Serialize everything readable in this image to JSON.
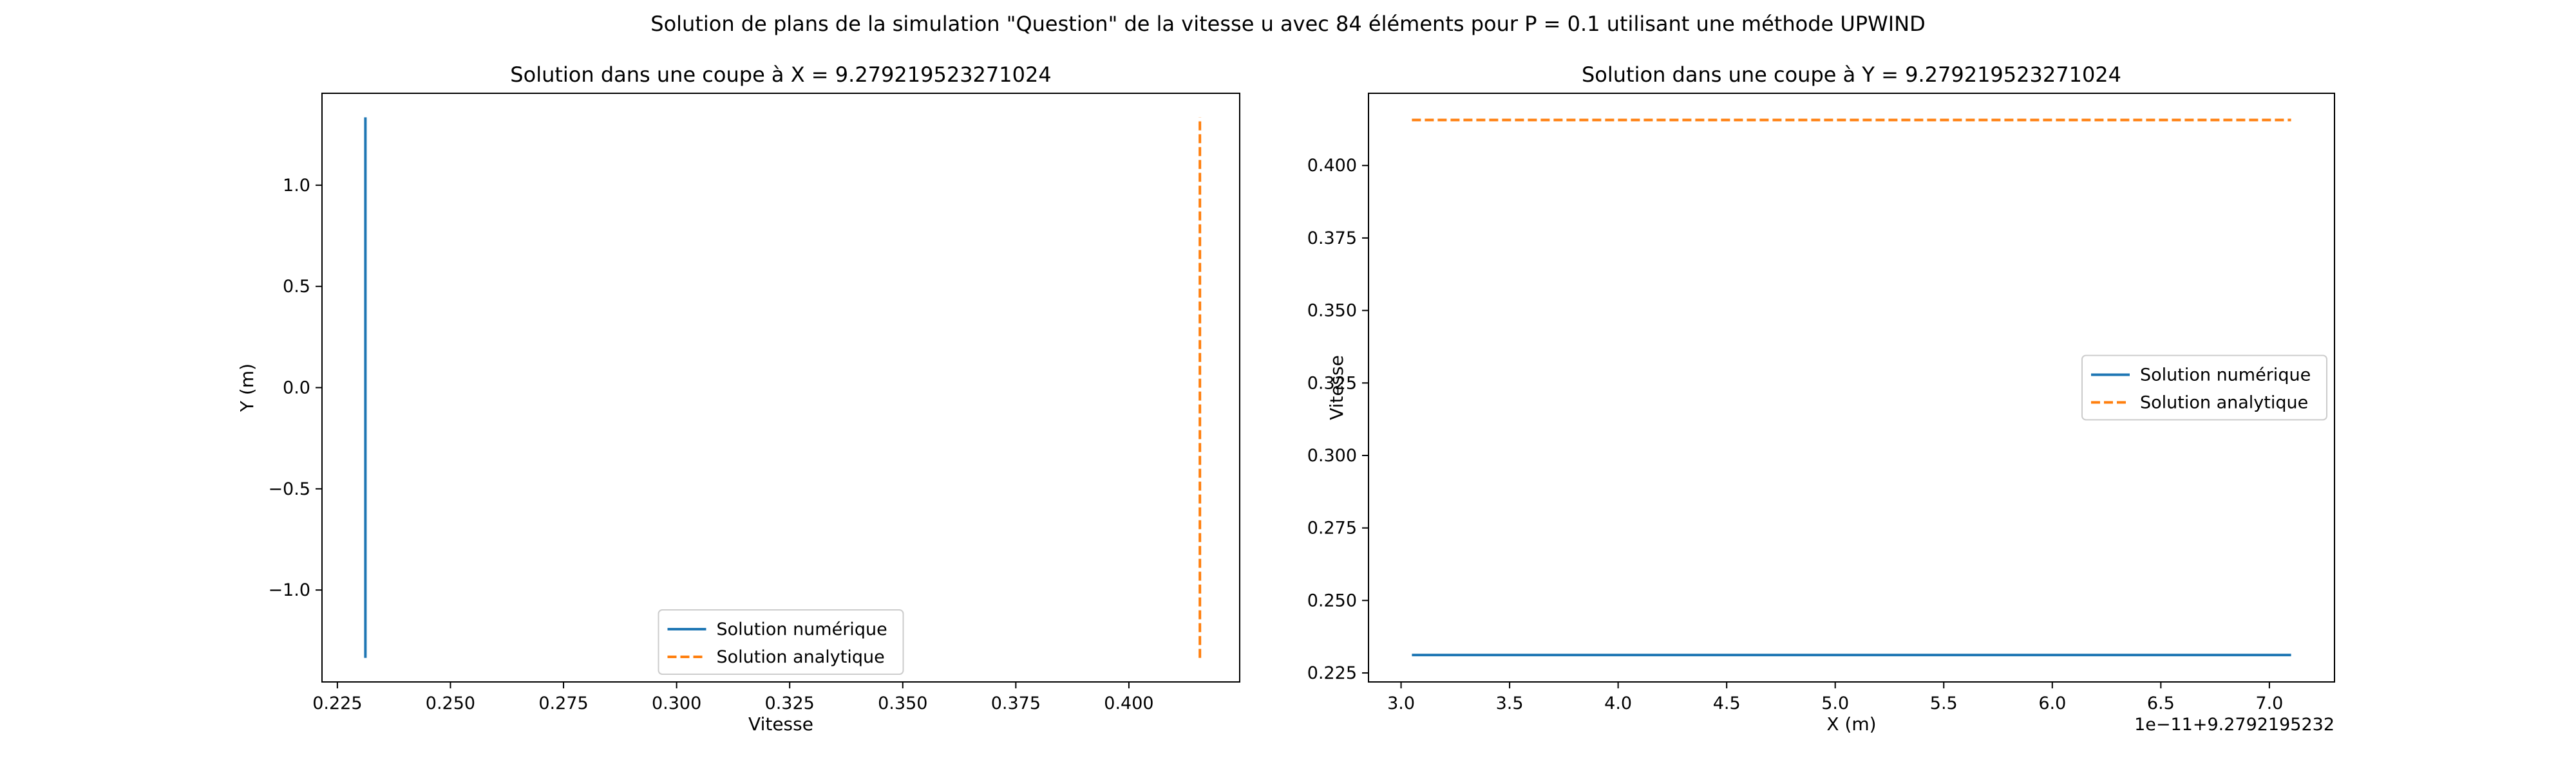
{
  "figure": {
    "suptitle": "Solution de plans de la simulation \"Question\" de la vitesse u avec 84 éléments pour P = 0.1 utilisant une méthode UPWIND"
  },
  "colors": {
    "numeric": "#1f77b4",
    "analytic": "#ff7f0e",
    "axes": "#000000",
    "background": "#ffffff"
  },
  "chart_data": [
    {
      "type": "line",
      "title": "Solution dans une coupe à X = 9.279219523271024",
      "xlabel": "Vitesse",
      "ylabel": "Y (m)",
      "xlim": [
        0.2216,
        0.4245
      ],
      "ylim": [
        -1.454,
        1.454
      ],
      "xticks": [
        0.225,
        0.25,
        0.275,
        0.3,
        0.325,
        0.35,
        0.375,
        0.4
      ],
      "xtick_labels": [
        "0.225",
        "0.250",
        "0.275",
        "0.300",
        "0.325",
        "0.350",
        "0.375",
        "0.400"
      ],
      "yticks": [
        -1.0,
        -0.5,
        0.0,
        0.5,
        1.0
      ],
      "ytick_labels": [
        "−1.0",
        "−0.5",
        "0.0",
        "0.5",
        "1.0"
      ],
      "grid": false,
      "legend_position": "lower center",
      "series": [
        {
          "name": "Solution numérique",
          "style": "solid",
          "color": "#1f77b4",
          "x": [
            0.2312,
            0.2312
          ],
          "y": [
            -1.335,
            1.335
          ]
        },
        {
          "name": "Solution analytique",
          "style": "dashed",
          "color": "#ff7f0e",
          "x": [
            0.4157,
            0.4157
          ],
          "y": [
            -1.335,
            1.335
          ]
        }
      ]
    },
    {
      "type": "line",
      "title": "Solution dans une coupe à Y = 9.279219523271024",
      "xlabel": "X (m)",
      "ylabel": "Vitesse",
      "x_offset_label": "1e−11+9.2792195232",
      "xlim": [
        2.85,
        7.3
      ],
      "ylim": [
        0.2219,
        0.4249
      ],
      "xticks": [
        3.0,
        3.5,
        4.0,
        4.5,
        5.0,
        5.5,
        6.0,
        6.5,
        7.0
      ],
      "xtick_labels": [
        "3.0",
        "3.5",
        "4.0",
        "4.5",
        "5.0",
        "5.5",
        "6.0",
        "6.5",
        "7.0"
      ],
      "yticks": [
        0.225,
        0.25,
        0.275,
        0.3,
        0.325,
        0.35,
        0.375,
        0.4
      ],
      "ytick_labels": [
        "0.225",
        "0.250",
        "0.275",
        "0.300",
        "0.325",
        "0.350",
        "0.375",
        "0.400"
      ],
      "grid": false,
      "legend_position": "center right",
      "series": [
        {
          "name": "Solution numérique",
          "style": "solid",
          "color": "#1f77b4",
          "x": [
            3.05,
            7.1
          ],
          "y": [
            0.2312,
            0.2312
          ]
        },
        {
          "name": "Solution analytique",
          "style": "dashed",
          "color": "#ff7f0e",
          "x": [
            3.05,
            7.1
          ],
          "y": [
            0.4157,
            0.4157
          ]
        }
      ]
    }
  ]
}
